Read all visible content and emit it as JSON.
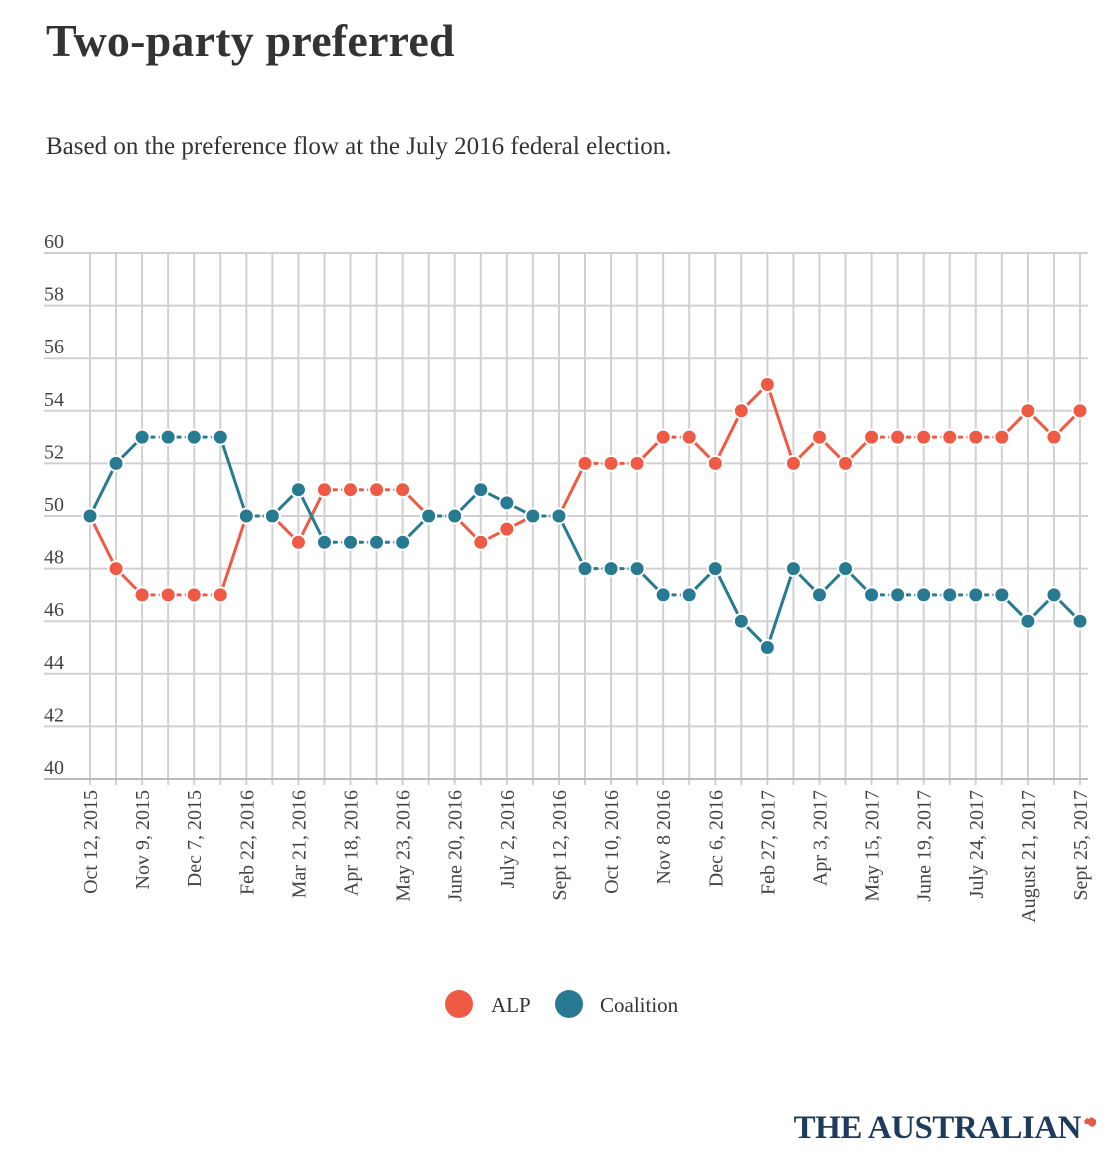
{
  "header": {
    "title": "Two-party preferred",
    "subtitle": "Based on the preference flow at the July 2016 federal election."
  },
  "brand": {
    "name": "THE AUSTRALIAN",
    "color": "#1e3a5c",
    "mark_color": "#e85a45"
  },
  "colors": {
    "alp": "#ef5a45",
    "coalition": "#287a93",
    "grid": "#d0d0d0",
    "axis": "#bbbbbb"
  },
  "chart_data": {
    "type": "line",
    "title": "Two-party preferred",
    "subtitle": "Based on the preference flow at the July 2016 federal election.",
    "xlabel": "",
    "ylabel": "",
    "ylim": [
      40,
      60
    ],
    "yticks": [
      40,
      42,
      44,
      46,
      48,
      50,
      52,
      54,
      56,
      58,
      60
    ],
    "grid": true,
    "legend": "bottom-center",
    "x": [
      "Oct 12, 2015",
      "",
      "Nov 9, 2015",
      "",
      "Dec 7, 2015",
      "",
      "Feb 22, 2016",
      "",
      "Mar 21, 2016",
      "",
      "Apr 18, 2016",
      "",
      "May 23, 2016",
      "",
      "June 20, 2016",
      "",
      "July 2, 2016",
      "",
      "Sept 12, 2016",
      "",
      "Oct 10, 2016",
      "",
      "Nov 8 2016",
      "",
      "Dec 6, 2016",
      "",
      "Feb 27, 2017",
      "",
      "Apr 3, 2017",
      "",
      "May 15, 2017",
      "",
      "June 19, 2017",
      "",
      "July 24, 2017",
      "",
      "August 21, 2017",
      "",
      "Sept 25, 2017"
    ],
    "series": [
      {
        "name": "ALP",
        "color": "#ef5a45",
        "values": [
          50,
          48,
          47,
          47,
          47,
          47,
          50,
          50,
          49,
          51,
          51,
          51,
          51,
          50,
          50,
          49,
          49.5,
          50,
          50,
          52,
          52,
          52,
          53,
          53,
          52,
          54,
          55,
          52,
          53,
          52,
          53,
          53,
          53,
          53,
          53,
          53,
          54,
          53,
          54
        ]
      },
      {
        "name": "Coalition",
        "color": "#287a93",
        "values": [
          50,
          52,
          53,
          53,
          53,
          53,
          50,
          50,
          51,
          49,
          49,
          49,
          49,
          50,
          50,
          51,
          50.5,
          50,
          50,
          48,
          48,
          48,
          47,
          47,
          48,
          46,
          45,
          48,
          47,
          48,
          47,
          47,
          47,
          47,
          47,
          47,
          46,
          47,
          46
        ]
      }
    ]
  }
}
